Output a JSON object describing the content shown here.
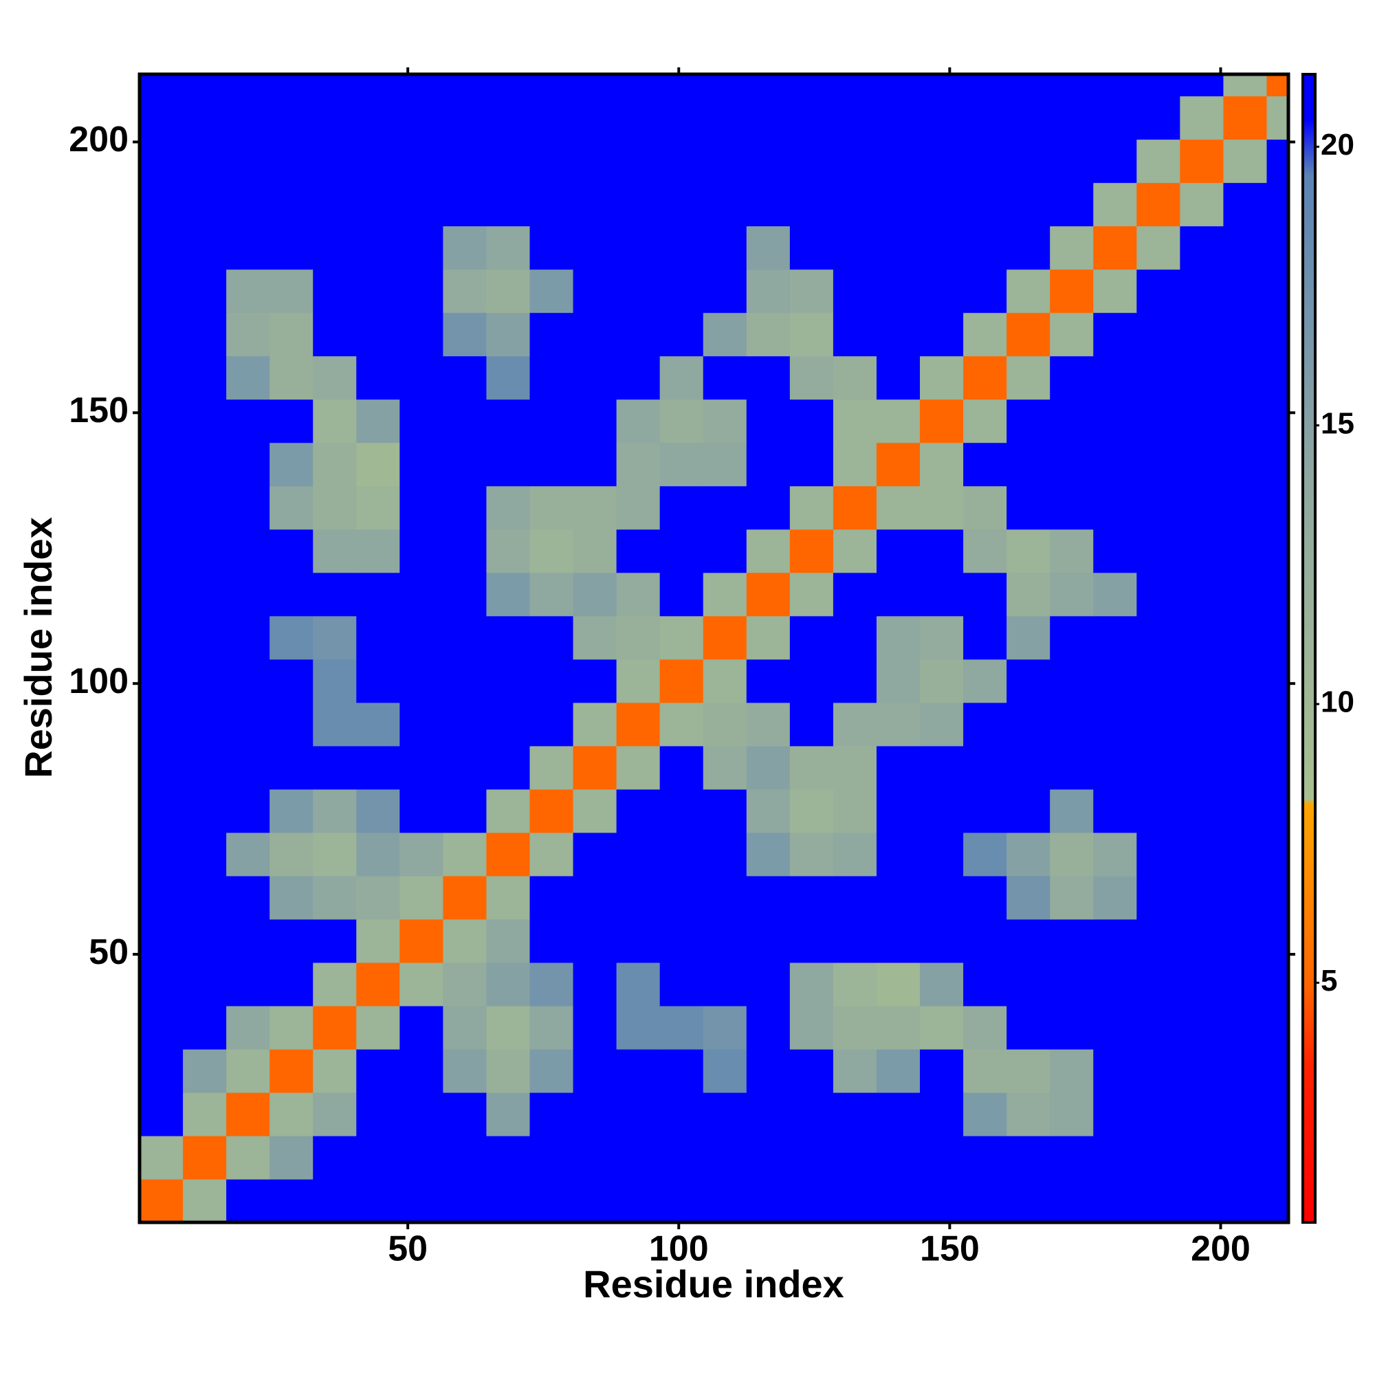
{
  "chart_data": {
    "type": "heatmap",
    "xlabel": "Residue index",
    "ylabel": "Residue index",
    "xlim": [
      0.5,
      212.5
    ],
    "ylim": [
      0.5,
      212.5
    ],
    "xticks": [
      50,
      100,
      150,
      200
    ],
    "yticks": [
      50,
      100,
      150,
      200
    ],
    "clim": [
      0.7,
      21.3
    ],
    "cticks": [
      5,
      10,
      15,
      20
    ],
    "colorscale": [
      [
        0.7,
        "#ff0000"
      ],
      [
        3.5,
        "#ff2200"
      ],
      [
        5,
        "#ff6600"
      ],
      [
        8.2,
        "#ffa500"
      ],
      [
        8.3,
        "#a8bf8f"
      ],
      [
        14,
        "#8fa8a0"
      ],
      [
        19.5,
        "#5b83b5"
      ],
      [
        20.5,
        "#0000ff"
      ],
      [
        21.3,
        "#0000ff"
      ]
    ],
    "x_bins": [
      0.5,
      8.5,
      16.5,
      24.5,
      32.5,
      40.5,
      48.5,
      56.5,
      64.5,
      72.5,
      80.5,
      88.5,
      96.5,
      104.5,
      112.5,
      120.5,
      128.5,
      136.5,
      144.5,
      152.5,
      160.5,
      168.5,
      176.5,
      184.5,
      192.5,
      200.5,
      208.5,
      212.5
    ],
    "y_bins": [
      0.5,
      8.5,
      16.5,
      24.5,
      32.5,
      40.5,
      48.5,
      56.5,
      64.5,
      72.5,
      80.5,
      88.5,
      96.5,
      104.5,
      112.5,
      120.5,
      128.5,
      136.5,
      144.5,
      152.5,
      160.5,
      168.5,
      176.5,
      184.5,
      192.5,
      200.5,
      208.5,
      212.5
    ],
    "z": [
      [
        5,
        11,
        21,
        21,
        21,
        21,
        21,
        21,
        21,
        21,
        21,
        21,
        21,
        21,
        21,
        21,
        21,
        21,
        21,
        21,
        21,
        21,
        21,
        21,
        21,
        21,
        21
      ],
      [
        11,
        5,
        11,
        15,
        21,
        21,
        21,
        21,
        21,
        21,
        21,
        21,
        21,
        21,
        21,
        21,
        21,
        21,
        21,
        21,
        21,
        21,
        21,
        21,
        21,
        21,
        21
      ],
      [
        21,
        11,
        5,
        11,
        14,
        21,
        21,
        21,
        15,
        21,
        21,
        21,
        21,
        21,
        21,
        21,
        21,
        21,
        21,
        16,
        13,
        14,
        21,
        21,
        21,
        21,
        21
      ],
      [
        21,
        15,
        11,
        5,
        11,
        21,
        21,
        15,
        12,
        16,
        21,
        21,
        21,
        18,
        21,
        21,
        14,
        16,
        21,
        12,
        12,
        14,
        21,
        21,
        21,
        21,
        21
      ],
      [
        21,
        21,
        14,
        11,
        5,
        11,
        21,
        14,
        11,
        14,
        21,
        18,
        18,
        17,
        21,
        14,
        12,
        12,
        11,
        13,
        21,
        21,
        21,
        21,
        21,
        21,
        21
      ],
      [
        21,
        21,
        21,
        21,
        11,
        5,
        11,
        13,
        15,
        17,
        21,
        18,
        21,
        21,
        21,
        14,
        11,
        10,
        15,
        21,
        21,
        21,
        21,
        21,
        21,
        21,
        21
      ],
      [
        21,
        21,
        21,
        21,
        21,
        11,
        5,
        11,
        14,
        21,
        21,
        21,
        21,
        21,
        21,
        21,
        21,
        21,
        21,
        21,
        21,
        21,
        21,
        21,
        21,
        21,
        21
      ],
      [
        21,
        21,
        21,
        15,
        14,
        13,
        11,
        5,
        11,
        21,
        21,
        21,
        21,
        21,
        21,
        21,
        21,
        21,
        21,
        21,
        17,
        13,
        15,
        21,
        21,
        21,
        21
      ],
      [
        21,
        21,
        15,
        12,
        11,
        15,
        14,
        11,
        5,
        11,
        21,
        21,
        21,
        21,
        16,
        13,
        14,
        21,
        21,
        18,
        15,
        12,
        14,
        21,
        21,
        21,
        21
      ],
      [
        21,
        21,
        21,
        16,
        14,
        17,
        21,
        21,
        11,
        5,
        11,
        21,
        21,
        21,
        14,
        11,
        12,
        21,
        21,
        21,
        21,
        16,
        21,
        21,
        21,
        21,
        21
      ],
      [
        21,
        21,
        21,
        21,
        21,
        21,
        21,
        21,
        21,
        11,
        5,
        11,
        21,
        13,
        15,
        12,
        12,
        21,
        21,
        21,
        21,
        21,
        21,
        21,
        21,
        21,
        21
      ],
      [
        21,
        21,
        21,
        21,
        18,
        18,
        21,
        21,
        21,
        21,
        11,
        5,
        11,
        12,
        13,
        21,
        13,
        13,
        14,
        21,
        21,
        21,
        21,
        21,
        21,
        21,
        21
      ],
      [
        21,
        21,
        21,
        21,
        18,
        21,
        21,
        21,
        21,
        21,
        21,
        11,
        5,
        11,
        21,
        21,
        21,
        14,
        12,
        14,
        21,
        21,
        21,
        21,
        21,
        21,
        21
      ],
      [
        21,
        21,
        21,
        18,
        17,
        21,
        21,
        21,
        21,
        21,
        13,
        12,
        11,
        5,
        11,
        21,
        21,
        14,
        13,
        21,
        15,
        21,
        21,
        21,
        21,
        21,
        21
      ],
      [
        21,
        21,
        21,
        21,
        21,
        21,
        21,
        21,
        16,
        14,
        15,
        13,
        21,
        11,
        5,
        11,
        21,
        21,
        21,
        21,
        12,
        14,
        15,
        21,
        21,
        21,
        21
      ],
      [
        21,
        21,
        21,
        21,
        14,
        14,
        21,
        21,
        13,
        11,
        12,
        21,
        21,
        21,
        11,
        5,
        11,
        21,
        21,
        13,
        11,
        13,
        21,
        21,
        21,
        21,
        21
      ],
      [
        21,
        21,
        21,
        14,
        12,
        11,
        21,
        21,
        14,
        12,
        12,
        13,
        21,
        21,
        21,
        11,
        5,
        11,
        11,
        12,
        21,
        21,
        21,
        21,
        21,
        21,
        21
      ],
      [
        21,
        21,
        21,
        16,
        12,
        10,
        21,
        21,
        21,
        21,
        21,
        13,
        14,
        14,
        21,
        21,
        11,
        5,
        11,
        21,
        21,
        21,
        21,
        21,
        21,
        21,
        21
      ],
      [
        21,
        21,
        21,
        21,
        11,
        15,
        21,
        21,
        21,
        21,
        21,
        14,
        12,
        13,
        21,
        21,
        11,
        11,
        5,
        11,
        21,
        21,
        21,
        21,
        21,
        21,
        21
      ],
      [
        21,
        21,
        16,
        12,
        13,
        21,
        21,
        21,
        18,
        21,
        21,
        21,
        14,
        21,
        21,
        13,
        12,
        21,
        11,
        5,
        11,
        21,
        21,
        21,
        21,
        21,
        21
      ],
      [
        21,
        21,
        13,
        12,
        21,
        21,
        21,
        17,
        15,
        21,
        21,
        21,
        21,
        15,
        12,
        11,
        21,
        21,
        21,
        11,
        5,
        11,
        21,
        21,
        21,
        21,
        21
      ],
      [
        21,
        21,
        14,
        14,
        21,
        21,
        21,
        13,
        12,
        16,
        21,
        21,
        21,
        21,
        14,
        13,
        21,
        21,
        21,
        21,
        11,
        5,
        11,
        21,
        21,
        21,
        21
      ],
      [
        21,
        21,
        21,
        21,
        21,
        21,
        21,
        15,
        14,
        21,
        21,
        21,
        21,
        21,
        15,
        21,
        21,
        21,
        21,
        21,
        21,
        11,
        5,
        11,
        21,
        21,
        21
      ],
      [
        21,
        21,
        21,
        21,
        21,
        21,
        21,
        21,
        21,
        21,
        21,
        21,
        21,
        21,
        21,
        21,
        21,
        21,
        21,
        21,
        21,
        21,
        11,
        5,
        11,
        21,
        21
      ],
      [
        21,
        21,
        21,
        21,
        21,
        21,
        21,
        21,
        21,
        21,
        21,
        21,
        21,
        21,
        21,
        21,
        21,
        21,
        21,
        21,
        21,
        21,
        21,
        11,
        5,
        11,
        21
      ],
      [
        21,
        21,
        21,
        21,
        21,
        21,
        21,
        21,
        21,
        21,
        21,
        21,
        21,
        21,
        21,
        21,
        21,
        21,
        21,
        21,
        21,
        21,
        21,
        21,
        11,
        5,
        11
      ],
      [
        21,
        21,
        21,
        21,
        21,
        21,
        21,
        21,
        21,
        21,
        21,
        21,
        21,
        21,
        21,
        21,
        21,
        21,
        21,
        21,
        21,
        21,
        21,
        21,
        21,
        11,
        5
      ]
    ]
  }
}
